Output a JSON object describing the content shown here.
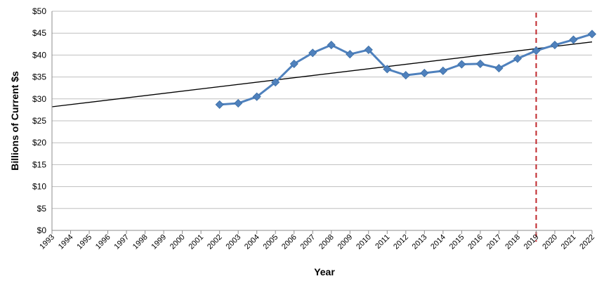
{
  "chart_data": {
    "type": "line",
    "title": "",
    "xlabel": "Year",
    "ylabel": "Billions of Current $s",
    "categories": [
      "1993",
      "1994",
      "1995",
      "1996",
      "1997",
      "1998",
      "1999",
      "2000",
      "2001",
      "2002",
      "2003",
      "2004",
      "2005",
      "2006",
      "2007",
      "2008",
      "2009",
      "2010",
      "2011",
      "2012",
      "2013",
      "2014",
      "2015",
      "2016",
      "2017",
      "2018",
      "2019",
      "2020",
      "2021",
      "2022"
    ],
    "ylim": [
      0,
      50
    ],
    "y_ticks": [
      "$0",
      "$5",
      "$10",
      "$15",
      "$20",
      "$25",
      "$30",
      "$35",
      "$40",
      "$45",
      "$50"
    ],
    "y_tick_values": [
      0,
      5,
      10,
      15,
      20,
      25,
      30,
      35,
      40,
      45,
      50
    ],
    "grid": "horizontal",
    "series": [
      {
        "x": [
          "2002",
          "2003",
          "2004",
          "2005",
          "2006",
          "2007",
          "2008",
          "2009",
          "2010",
          "2011",
          "2012",
          "2013",
          "2014",
          "2015",
          "2016",
          "2017",
          "2018",
          "2019",
          "2020",
          "2021",
          "2022"
        ],
        "values": [
          28.7,
          29.0,
          30.5,
          33.8,
          38.0,
          40.5,
          42.3,
          40.2,
          41.2,
          36.8,
          35.4,
          35.9,
          36.4,
          37.9,
          38.0,
          37.0,
          39.2,
          41.0,
          42.3,
          43.5,
          44.8
        ],
        "color": "#4F81BD",
        "marker": "diamond"
      }
    ],
    "trendline": {
      "color": "#000000",
      "start": {
        "x": "1993",
        "y": 28.2
      },
      "end": {
        "x": "2022",
        "y": 43.0
      }
    },
    "reference_line": {
      "x": "2019",
      "color": "#C0272D",
      "style": "dashed"
    }
  }
}
